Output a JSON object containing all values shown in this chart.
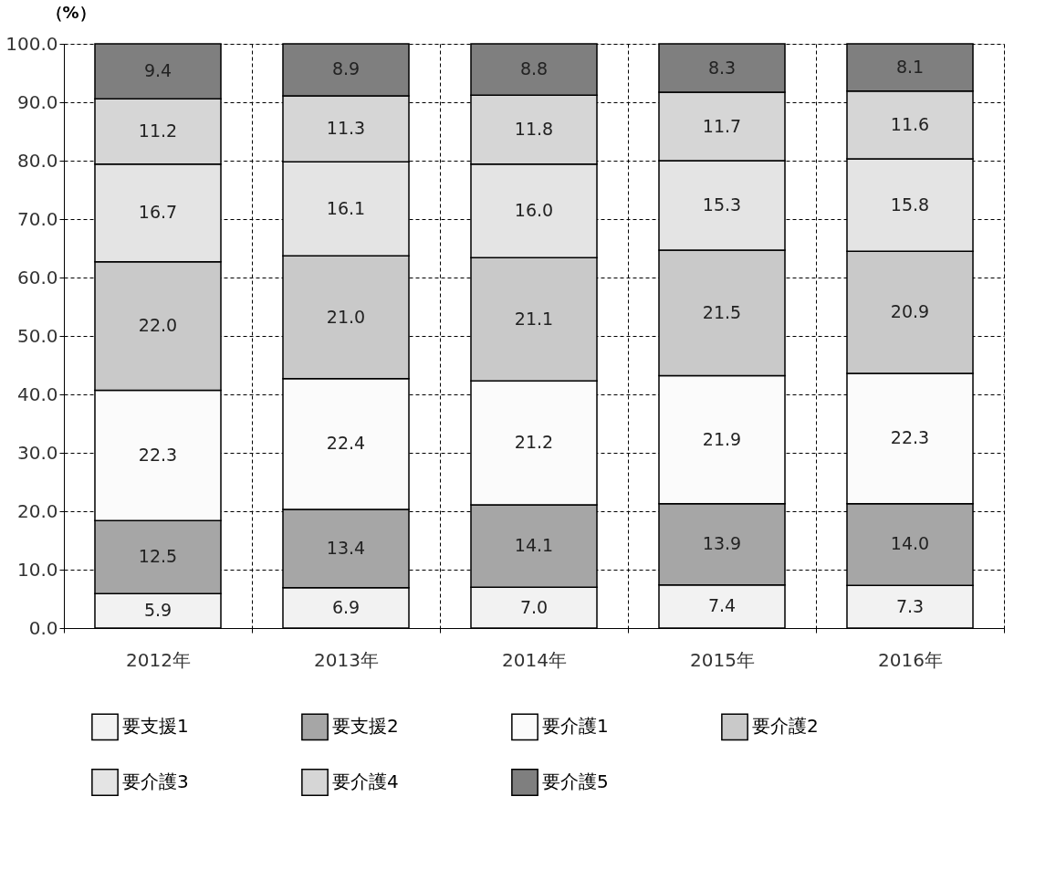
{
  "chart_data": {
    "type": "bar",
    "stacked": true,
    "ylabel": "（%）",
    "categories": [
      "2012年",
      "2013年",
      "2014年",
      "2015年",
      "2016年"
    ],
    "series": [
      {
        "name": "要支援1",
        "color": "#f2f2f2",
        "values": [
          5.9,
          6.9,
          7.0,
          7.4,
          7.3
        ],
        "value_labels": [
          "5.9",
          "6.9",
          "7.0",
          "7.4",
          "7.3"
        ]
      },
      {
        "name": "要支援2",
        "color": "#a6a6a6",
        "values": [
          12.5,
          13.4,
          14.1,
          13.9,
          14.0
        ],
        "value_labels": [
          "12.5",
          "13.4",
          "14.1",
          "13.9",
          "14.0"
        ]
      },
      {
        "name": "要介護1",
        "color": "#fbfbfb",
        "values": [
          22.3,
          22.4,
          21.2,
          21.9,
          22.3
        ],
        "value_labels": [
          "22.3",
          "22.4",
          "21.2",
          "21.9",
          "22.3"
        ]
      },
      {
        "name": "要介護2",
        "color": "#c9c9c9",
        "values": [
          22.0,
          21.0,
          21.1,
          21.5,
          20.9
        ],
        "value_labels": [
          "22.0",
          "21.0",
          "21.1",
          "21.5",
          "20.9"
        ]
      },
      {
        "name": "要介護3",
        "color": "#e4e4e4",
        "values": [
          16.7,
          16.1,
          16.0,
          15.3,
          15.8
        ],
        "value_labels": [
          "16.7",
          "16.1",
          "16.0",
          "15.3",
          "15.8"
        ]
      },
      {
        "name": "要介護4",
        "color": "#d6d6d6",
        "values": [
          11.2,
          11.3,
          11.8,
          11.7,
          11.6
        ],
        "value_labels": [
          "11.2",
          "11.3",
          "11.8",
          "11.7",
          "11.6"
        ]
      },
      {
        "name": "要介護5",
        "color": "#7f7f7f",
        "values": [
          9.4,
          8.9,
          8.8,
          8.3,
          8.1
        ],
        "value_labels": [
          "9.4",
          "8.9",
          "8.8",
          "8.3",
          "8.1"
        ]
      }
    ],
    "ylim": [
      0,
      100
    ],
    "yticks": [
      {
        "value": 0,
        "label": "0.0"
      },
      {
        "value": 10,
        "label": "10.0"
      },
      {
        "value": 20,
        "label": "20.0"
      },
      {
        "value": 30,
        "label": "30.0"
      },
      {
        "value": 40,
        "label": "40.0"
      },
      {
        "value": 50,
        "label": "50.0"
      },
      {
        "value": 60,
        "label": "60.0"
      },
      {
        "value": 70,
        "label": "70.0"
      },
      {
        "value": 80,
        "label": "80.0"
      },
      {
        "value": 90,
        "label": "90.0"
      },
      {
        "value": 100,
        "label": "100.0"
      }
    ],
    "grid": true,
    "legend": "bottom"
  }
}
